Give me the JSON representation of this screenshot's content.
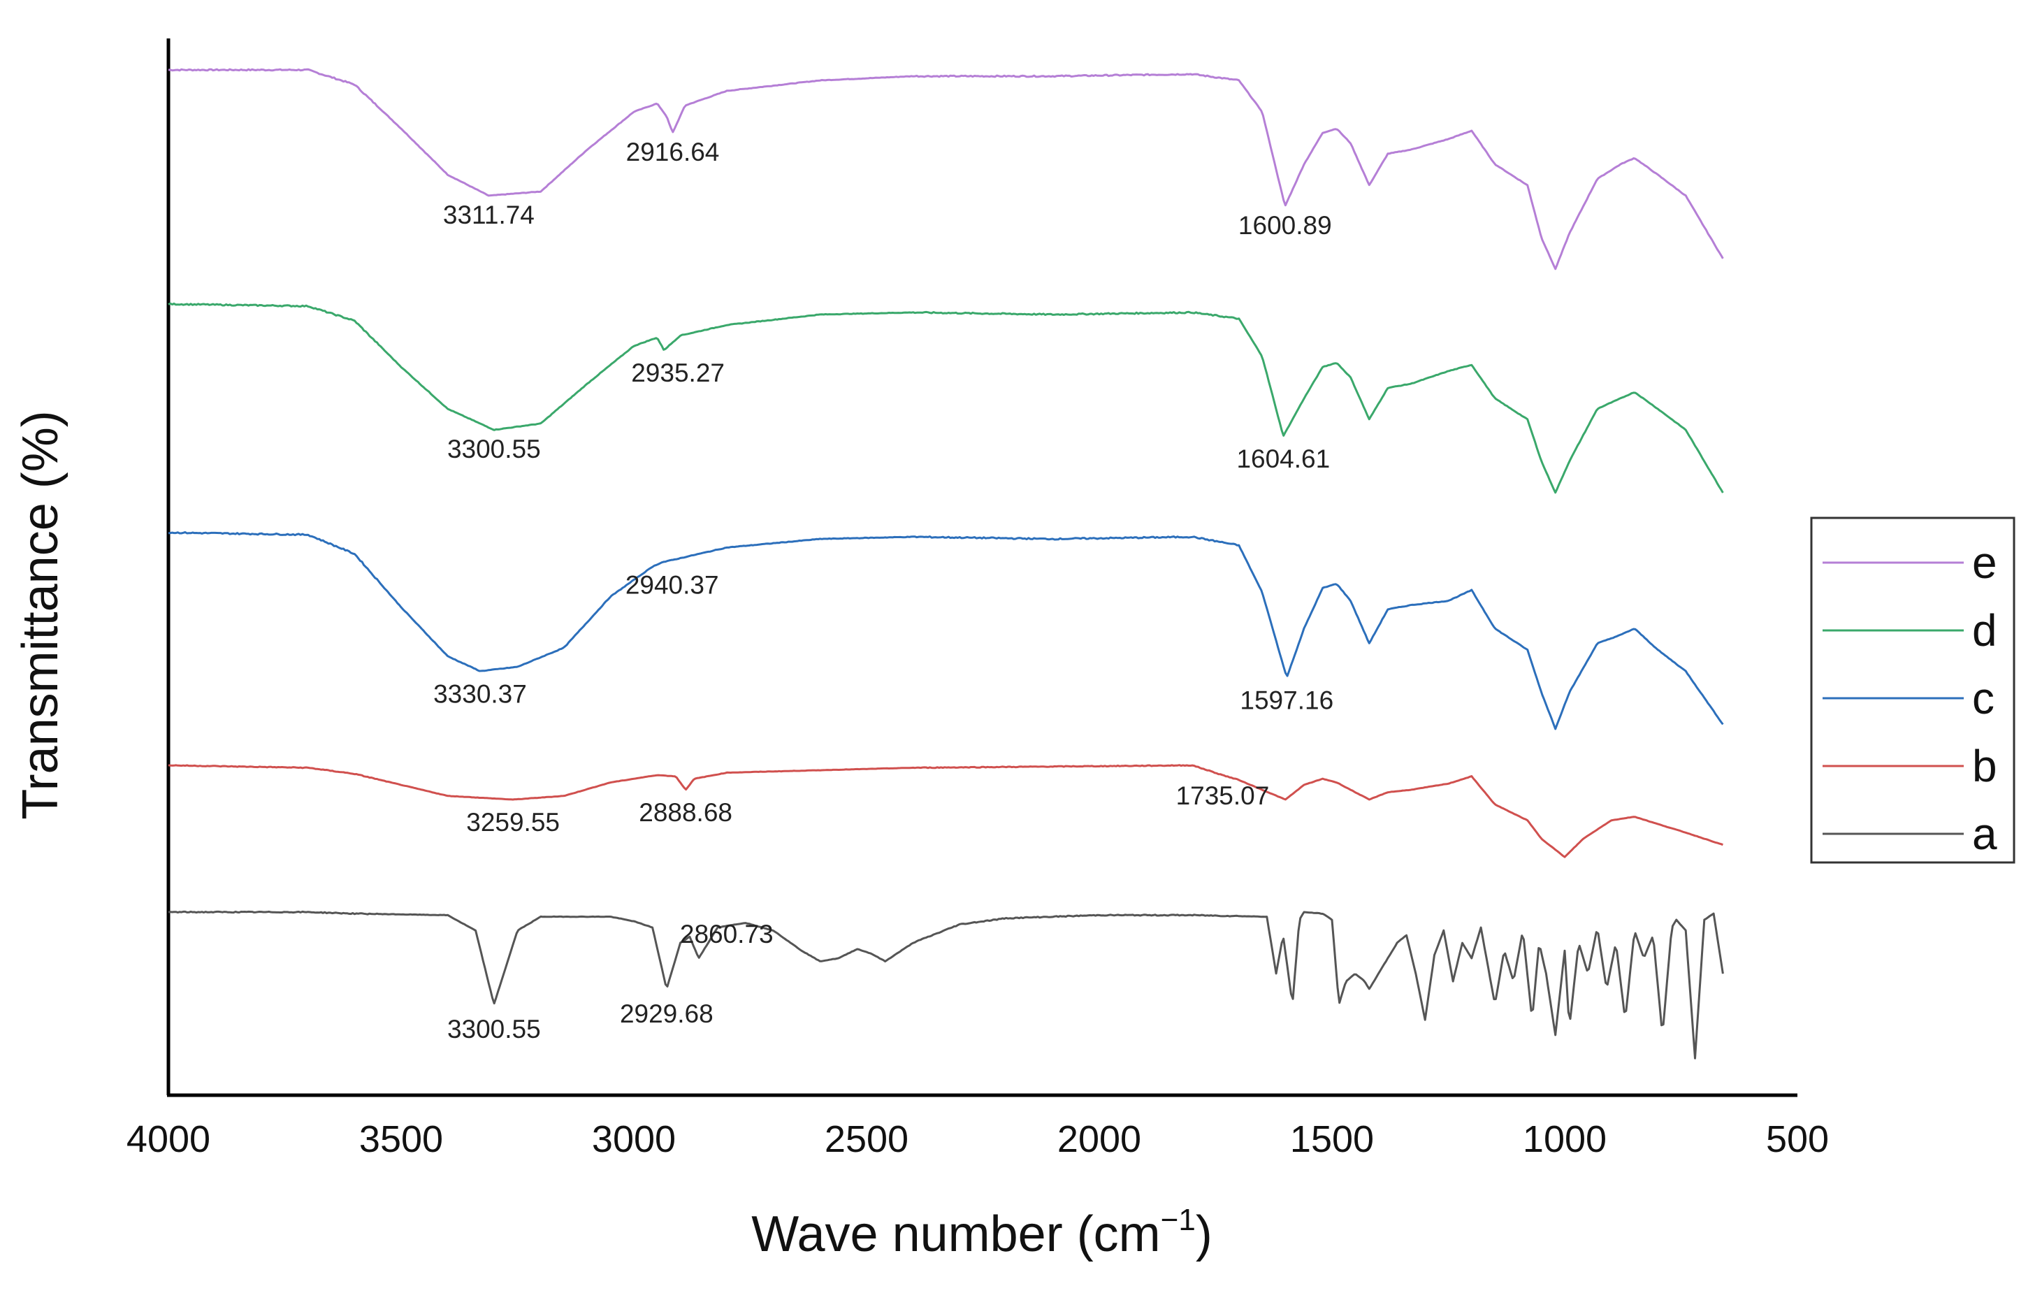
{
  "chart_data": {
    "type": "line",
    "title": "",
    "xlabel_main": "Wave number (cm",
    "xlabel_sup": "−1",
    "xlabel_close": ")",
    "ylabel": "Transmittance (%)",
    "xlim": [
      4000,
      500
    ],
    "x_ticks": [
      "4000",
      "3500",
      "3000",
      "2500",
      "2000",
      "1500",
      "1000",
      "500"
    ],
    "x_tick_values": [
      4000,
      3500,
      3000,
      2500,
      2000,
      1500,
      1000,
      500
    ],
    "y_ticks": [],
    "grid": false,
    "legend_position": "right",
    "legend_entries": [
      "e",
      "d",
      "c",
      "b",
      "a"
    ],
    "series": [
      {
        "name": "e",
        "color": "#b57fd6",
        "baseline": 100,
        "points": [
          [
            4000,
            100
          ],
          [
            3700,
            100
          ],
          [
            3600,
            93
          ],
          [
            3500,
            72
          ],
          [
            3400,
            50
          ],
          [
            3311.74,
            40
          ],
          [
            3200,
            42
          ],
          [
            3100,
            62
          ],
          [
            3000,
            80
          ],
          [
            2950,
            84
          ],
          [
            2930,
            78
          ],
          [
            2916.64,
            70
          ],
          [
            2890,
            83
          ],
          [
            2800,
            90
          ],
          [
            2600,
            95
          ],
          [
            2400,
            97
          ],
          [
            2100,
            97
          ],
          [
            1800,
            98
          ],
          [
            1700,
            95
          ],
          [
            1650,
            80
          ],
          [
            1600.89,
            35
          ],
          [
            1560,
            55
          ],
          [
            1520,
            70
          ],
          [
            1490,
            72
          ],
          [
            1460,
            65
          ],
          [
            1420,
            45
          ],
          [
            1380,
            60
          ],
          [
            1330,
            62
          ],
          [
            1250,
            67
          ],
          [
            1200,
            71
          ],
          [
            1150,
            55
          ],
          [
            1080,
            45
          ],
          [
            1050,
            20
          ],
          [
            1020,
            5
          ],
          [
            990,
            22
          ],
          [
            930,
            48
          ],
          [
            880,
            55
          ],
          [
            850,
            58
          ],
          [
            800,
            50
          ],
          [
            740,
            40
          ],
          [
            660,
            10
          ]
        ]
      },
      {
        "name": "d",
        "color": "#3aa86b",
        "baseline": 100,
        "points": [
          [
            4000,
            100
          ],
          [
            3700,
            99
          ],
          [
            3600,
            92
          ],
          [
            3500,
            70
          ],
          [
            3400,
            50
          ],
          [
            3300.55,
            40
          ],
          [
            3200,
            43
          ],
          [
            3100,
            62
          ],
          [
            3000,
            80
          ],
          [
            2950,
            84
          ],
          [
            2935.27,
            78
          ],
          [
            2900,
            85
          ],
          [
            2800,
            90
          ],
          [
            2600,
            95
          ],
          [
            2400,
            96
          ],
          [
            2100,
            95
          ],
          [
            1800,
            96
          ],
          [
            1700,
            93
          ],
          [
            1650,
            75
          ],
          [
            1604.61,
            37
          ],
          [
            1560,
            55
          ],
          [
            1520,
            70
          ],
          [
            1490,
            72
          ],
          [
            1460,
            65
          ],
          [
            1420,
            45
          ],
          [
            1380,
            60
          ],
          [
            1330,
            62
          ],
          [
            1250,
            68
          ],
          [
            1200,
            71
          ],
          [
            1150,
            55
          ],
          [
            1080,
            45
          ],
          [
            1050,
            25
          ],
          [
            1020,
            10
          ],
          [
            990,
            25
          ],
          [
            930,
            50
          ],
          [
            880,
            55
          ],
          [
            850,
            58
          ],
          [
            800,
            50
          ],
          [
            740,
            40
          ],
          [
            660,
            10
          ]
        ]
      },
      {
        "name": "c",
        "color": "#2c6fbb",
        "baseline": 100,
        "points": [
          [
            4000,
            100
          ],
          [
            3700,
            99
          ],
          [
            3600,
            90
          ],
          [
            3500,
            65
          ],
          [
            3400,
            42
          ],
          [
            3330.37,
            35
          ],
          [
            3250,
            37
          ],
          [
            3150,
            46
          ],
          [
            3050,
            70
          ],
          [
            2960,
            84
          ],
          [
            2940.37,
            86
          ],
          [
            2900,
            88
          ],
          [
            2800,
            93
          ],
          [
            2600,
            97
          ],
          [
            2400,
            98
          ],
          [
            2100,
            97
          ],
          [
            1800,
            98
          ],
          [
            1700,
            94
          ],
          [
            1650,
            72
          ],
          [
            1597.16,
            32
          ],
          [
            1560,
            55
          ],
          [
            1520,
            74
          ],
          [
            1490,
            76
          ],
          [
            1460,
            68
          ],
          [
            1420,
            48
          ],
          [
            1380,
            64
          ],
          [
            1330,
            66
          ],
          [
            1250,
            68
          ],
          [
            1200,
            73
          ],
          [
            1150,
            55
          ],
          [
            1080,
            45
          ],
          [
            1050,
            25
          ],
          [
            1020,
            8
          ],
          [
            990,
            25
          ],
          [
            930,
            48
          ],
          [
            880,
            52
          ],
          [
            850,
            55
          ],
          [
            800,
            45
          ],
          [
            740,
            35
          ],
          [
            660,
            10
          ]
        ]
      },
      {
        "name": "b",
        "color": "#d0504e",
        "baseline": 100,
        "points": [
          [
            4000,
            100
          ],
          [
            3700,
            98
          ],
          [
            3600,
            93
          ],
          [
            3500,
            84
          ],
          [
            3400,
            75
          ],
          [
            3259.55,
            72
          ],
          [
            3150,
            75
          ],
          [
            3050,
            86
          ],
          [
            2950,
            92
          ],
          [
            2910,
            91
          ],
          [
            2888.68,
            80
          ],
          [
            2870,
            89
          ],
          [
            2800,
            94
          ],
          [
            2600,
            96
          ],
          [
            2400,
            98
          ],
          [
            2100,
            99
          ],
          [
            1800,
            100
          ],
          [
            1735.07,
            92
          ],
          [
            1700,
            88
          ],
          [
            1650,
            80
          ],
          [
            1600,
            72
          ],
          [
            1560,
            84
          ],
          [
            1520,
            89
          ],
          [
            1490,
            86
          ],
          [
            1460,
            80
          ],
          [
            1420,
            72
          ],
          [
            1380,
            78
          ],
          [
            1330,
            80
          ],
          [
            1250,
            85
          ],
          [
            1200,
            91
          ],
          [
            1150,
            68
          ],
          [
            1080,
            55
          ],
          [
            1050,
            40
          ],
          [
            1000,
            25
          ],
          [
            960,
            40
          ],
          [
            900,
            55
          ],
          [
            850,
            58
          ],
          [
            800,
            52
          ],
          [
            740,
            45
          ],
          [
            660,
            35
          ]
        ]
      },
      {
        "name": "a",
        "color": "#555555",
        "baseline": 100,
        "points": [
          [
            4000,
            100
          ],
          [
            3700,
            100
          ],
          [
            3600,
            99
          ],
          [
            3400,
            98
          ],
          [
            3340,
            88
          ],
          [
            3300.55,
            40
          ],
          [
            3250,
            88
          ],
          [
            3200,
            97
          ],
          [
            3050,
            97
          ],
          [
            3000,
            94
          ],
          [
            2960,
            90
          ],
          [
            2929.68,
            50
          ],
          [
            2900,
            80
          ],
          [
            2880,
            84
          ],
          [
            2860.73,
            70
          ],
          [
            2820,
            90
          ],
          [
            2760,
            93
          ],
          [
            2700,
            88
          ],
          [
            2640,
            75
          ],
          [
            2600,
            68
          ],
          [
            2560,
            70
          ],
          [
            2520,
            76
          ],
          [
            2490,
            73
          ],
          [
            2460,
            68
          ],
          [
            2400,
            80
          ],
          [
            2300,
            92
          ],
          [
            2200,
            96
          ],
          [
            2000,
            98
          ],
          [
            1800,
            98
          ],
          [
            1640,
            97
          ],
          [
            1620,
            60
          ],
          [
            1605,
            85
          ],
          [
            1585,
            40
          ],
          [
            1570,
            95
          ],
          [
            1560,
            100
          ],
          [
            1520,
            99
          ],
          [
            1500,
            95
          ],
          [
            1485,
            40
          ],
          [
            1470,
            55
          ],
          [
            1450,
            60
          ],
          [
            1430,
            55
          ],
          [
            1420,
            50
          ],
          [
            1400,
            60
          ],
          [
            1380,
            70
          ],
          [
            1360,
            80
          ],
          [
            1340,
            85
          ],
          [
            1320,
            60
          ],
          [
            1300,
            30
          ],
          [
            1280,
            72
          ],
          [
            1260,
            88
          ],
          [
            1240,
            55
          ],
          [
            1220,
            80
          ],
          [
            1200,
            70
          ],
          [
            1180,
            90
          ],
          [
            1150,
            40
          ],
          [
            1130,
            75
          ],
          [
            1110,
            55
          ],
          [
            1090,
            88
          ],
          [
            1070,
            30
          ],
          [
            1055,
            80
          ],
          [
            1040,
            60
          ],
          [
            1020,
            20
          ],
          [
            1000,
            75
          ],
          [
            990,
            25
          ],
          [
            970,
            80
          ],
          [
            950,
            60
          ],
          [
            930,
            90
          ],
          [
            910,
            50
          ],
          [
            890,
            80
          ],
          [
            870,
            30
          ],
          [
            850,
            88
          ],
          [
            830,
            70
          ],
          [
            810,
            85
          ],
          [
            790,
            20
          ],
          [
            770,
            90
          ],
          [
            760,
            95
          ],
          [
            740,
            88
          ],
          [
            720,
            5
          ],
          [
            700,
            95
          ],
          [
            680,
            99
          ],
          [
            660,
            60
          ]
        ]
      }
    ],
    "annotations": [
      {
        "series": "e",
        "x": 3311.74,
        "label": "3311.74"
      },
      {
        "series": "e",
        "x": 2916.64,
        "label": "2916.64"
      },
      {
        "series": "e",
        "x": 1600.89,
        "label": "1600.89"
      },
      {
        "series": "d",
        "x": 3300.55,
        "label": "3300.55"
      },
      {
        "series": "d",
        "x": 2935.27,
        "label": "2935.27"
      },
      {
        "series": "d",
        "x": 1604.61,
        "label": "1604.61"
      },
      {
        "series": "c",
        "x": 3330.37,
        "label": "3330.37"
      },
      {
        "series": "c",
        "x": 2940.37,
        "label": "2940.37"
      },
      {
        "series": "c",
        "x": 1597.16,
        "label": "1597.16"
      },
      {
        "series": "b",
        "x": 3259.55,
        "label": "3259.55"
      },
      {
        "series": "b",
        "x": 2888.68,
        "label": "2888.68"
      },
      {
        "series": "b",
        "x": 1735.07,
        "label": "1735.07"
      },
      {
        "series": "a",
        "x": 3300.55,
        "label": "3300.55"
      },
      {
        "series": "a",
        "x": 2929.68,
        "label": "2929.68"
      },
      {
        "series": "a",
        "x": 2860.73,
        "label": "2860.73"
      }
    ]
  }
}
